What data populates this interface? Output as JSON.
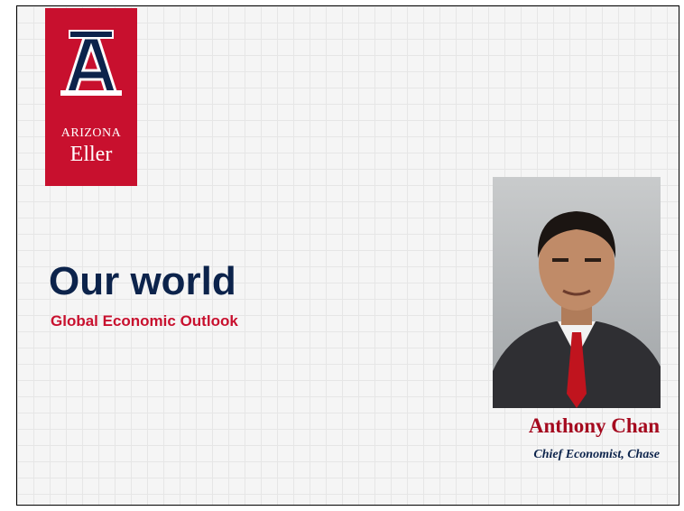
{
  "logo": {
    "university": "ARIZONA",
    "school": "Eller"
  },
  "title": "Our world",
  "subtitle": "Global Economic Outlook",
  "speaker": {
    "name": "Anthony Chan",
    "role": "Chief Economist, Chase"
  }
}
